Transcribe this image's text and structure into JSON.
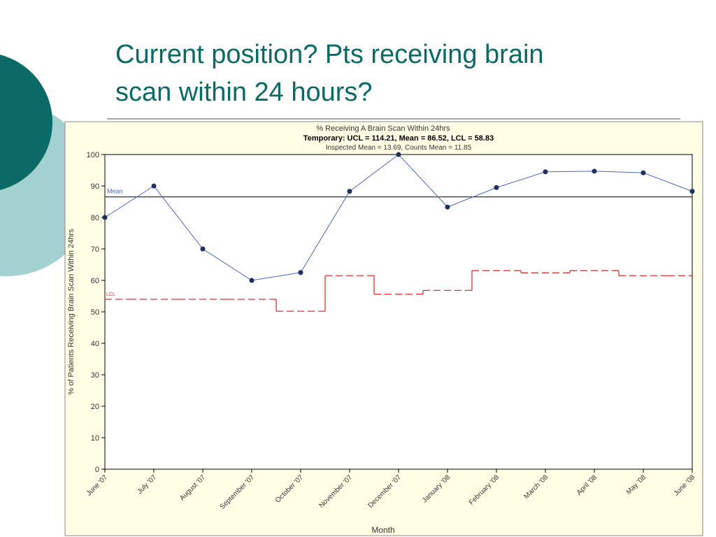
{
  "slide": {
    "title_lines": [
      "Current position? Pts receiving brain",
      "scan within 24 hours?"
    ]
  },
  "chart_data": {
    "type": "line",
    "title": "% Receiving A Brain Scan Within 24hrs",
    "subtitle": "Temporary: UCL = 114.21, Mean = 86.52, LCL = 58.83",
    "note": "Inspected Mean = 13.69, Counts Mean = 11.85",
    "x_label": "Month",
    "y_label": "% of Patients Receiving Brain Scan Within 24hrs",
    "categories": [
      "June '07",
      "July '07",
      "August '07",
      "September '07",
      "October '07",
      "November '07",
      "December '07",
      "January '08",
      "February '08",
      "March '08",
      "April '08",
      "May '08",
      "June '08"
    ],
    "values": [
      80,
      90,
      70,
      60,
      62.5,
      88.3,
      100,
      83.3,
      89.5,
      94.5,
      94.7,
      94.2,
      88.3
    ],
    "color": "#4a66c8",
    "marker_color": "#1f2f5f",
    "mean": {
      "label": "Mean",
      "value": 86.52,
      "color": "#000000"
    },
    "lcl": {
      "label": "LCL",
      "values": [
        54,
        54,
        54,
        54,
        50.2,
        61.5,
        55.6,
        56.8,
        63.1,
        62.4,
        63.1,
        61.5,
        61.5
      ],
      "color": "#e03030"
    },
    "ylim": [
      0,
      100
    ],
    "yticks": [
      0,
      10,
      20,
      30,
      40,
      50,
      60,
      70,
      80,
      90,
      100
    ]
  }
}
